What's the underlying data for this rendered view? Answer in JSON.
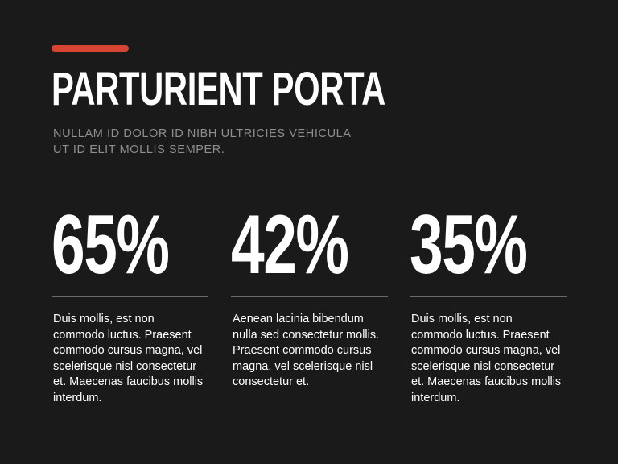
{
  "accent_color": "#d84432",
  "background_color": "#1a1a1a",
  "header": {
    "title": "PARTURIENT PORTA",
    "subtitle": "NULLAM ID DOLOR ID NIBH ULTRICIES VEHICULA UT ID ELIT MOLLIS SEMPER."
  },
  "stats": [
    {
      "value": "65%",
      "description": "Duis mollis, est non commodo luctus. Praesent commodo cursus magna, vel scelerisque nisl consectetur et. Maecenas faucibus mollis interdum."
    },
    {
      "value": "42%",
      "description": "Aenean lacinia bibendum nulla sed consectetur mollis. Praesent commodo cursus magna, vel scelerisque nisl consectetur et."
    },
    {
      "value": "35%",
      "description": "Duis mollis, est non commodo luctus. Praesent commodo cursus magna, vel scelerisque nisl consectetur et. Maecenas faucibus mollis interdum."
    }
  ]
}
